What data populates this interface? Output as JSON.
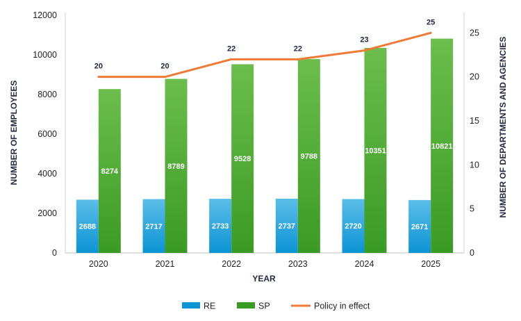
{
  "chart_data": {
    "type": "bar",
    "categories": [
      "2020",
      "2021",
      "2022",
      "2023",
      "2024",
      "2025"
    ],
    "series": [
      {
        "name": "RE",
        "type": "bar",
        "axis": "left",
        "color_top": "#5bbde8",
        "color_bottom": "#0c94d4",
        "values": [
          2688,
          2717,
          2733,
          2737,
          2720,
          2671
        ]
      },
      {
        "name": "SP",
        "type": "bar",
        "axis": "left",
        "color_top": "#6cbd4c",
        "color_bottom": "#3a9b24",
        "values": [
          8274,
          8789,
          9528,
          9788,
          10351,
          10821
        ]
      },
      {
        "name": "Policy in effect",
        "type": "line",
        "axis": "right",
        "color": "#ee7a36",
        "values": [
          20,
          20,
          22,
          22,
          23,
          25
        ]
      }
    ],
    "xlabel": "YEAR",
    "ylabel": "NUMBER OF  EMPLOYEES",
    "y2label": "NUMBER OF DEPARTMENTS AND AGENCIES",
    "ylim": [
      0,
      12000
    ],
    "y2lim": [
      0,
      27
    ],
    "yticks": [
      "0",
      "2000",
      "4000",
      "6000",
      "8000",
      "10000",
      "12000"
    ],
    "y2ticks": [
      "0",
      "5",
      "10",
      "15",
      "20",
      "25"
    ],
    "legend_position": "bottom",
    "grid": false
  }
}
